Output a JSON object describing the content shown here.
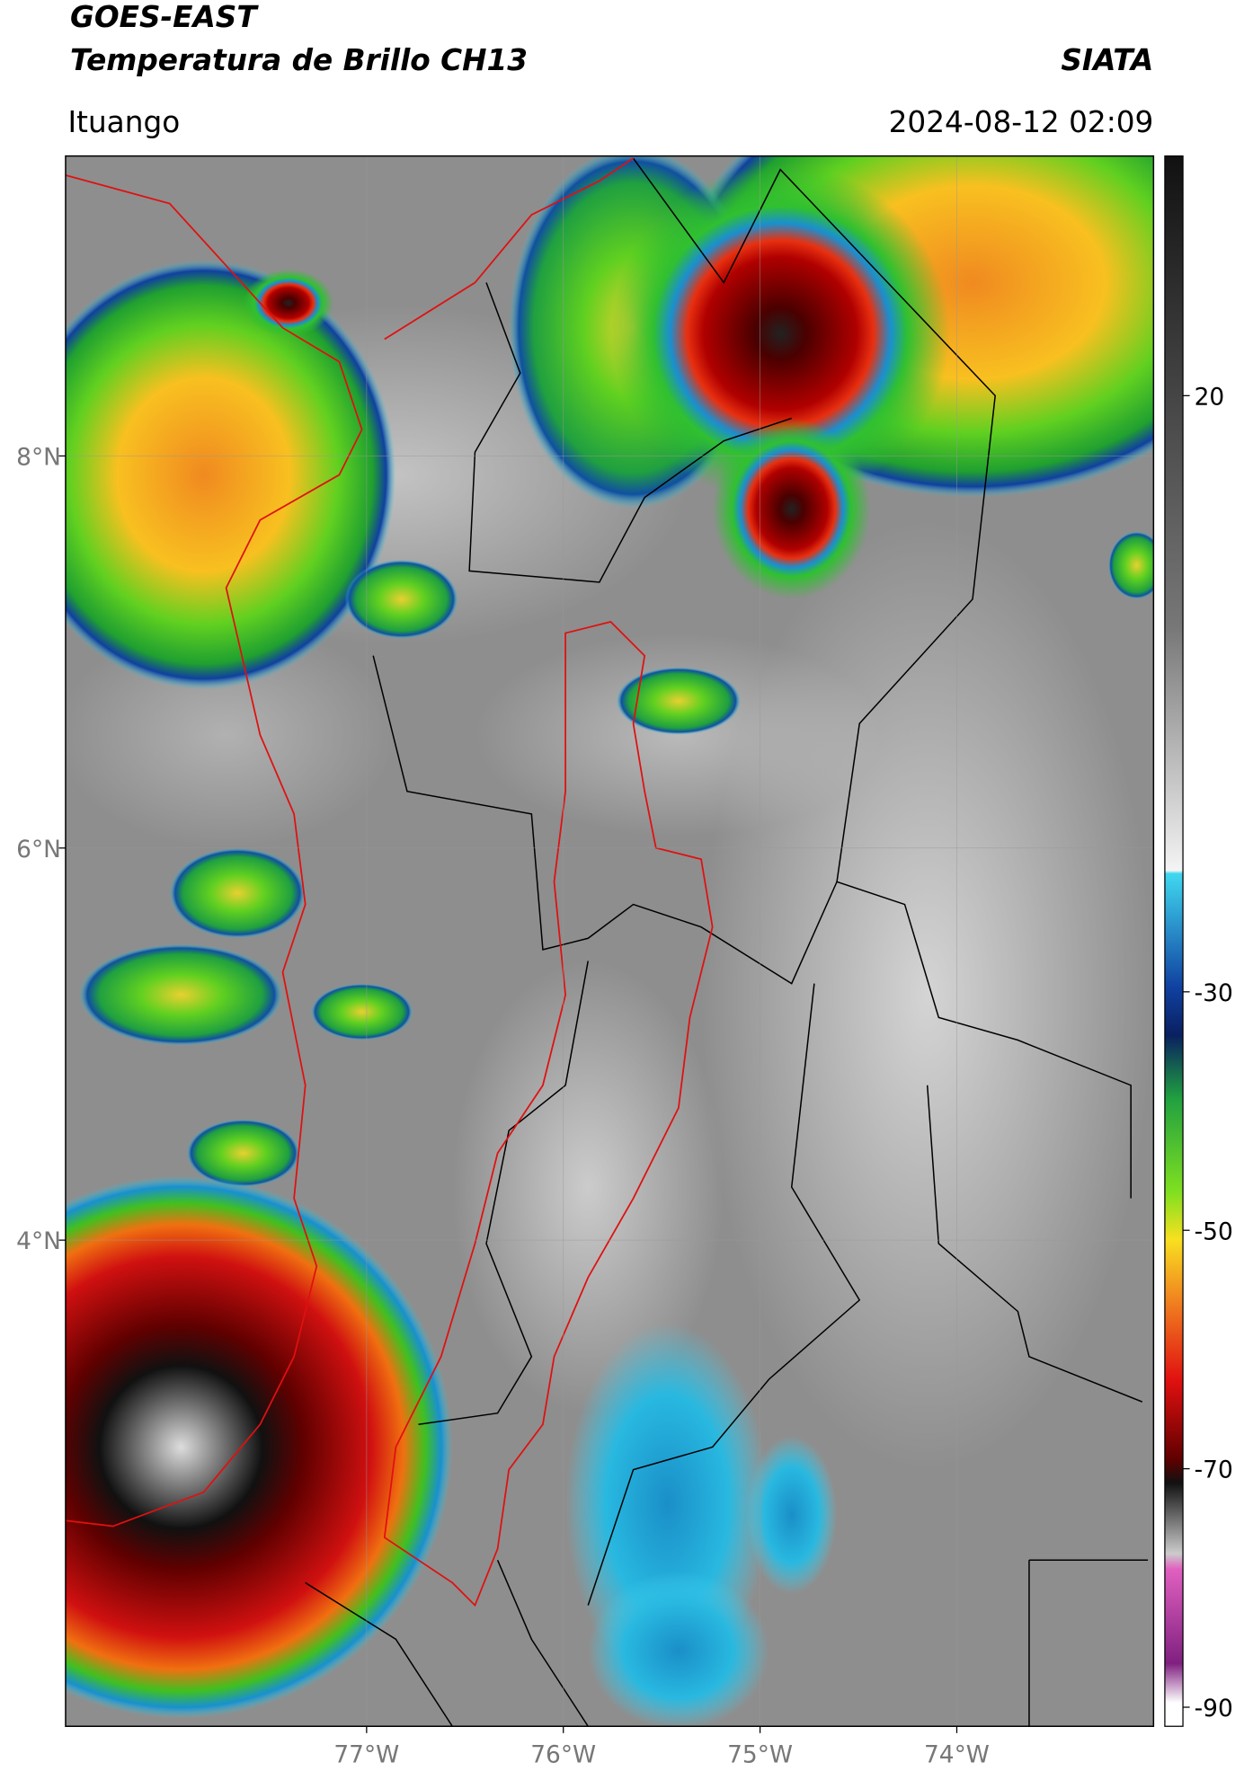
{
  "header": {
    "satellite": "GOES-EAST",
    "product": "Temperatura de Brillo CH13",
    "source": "SIATA",
    "region": "Ituango",
    "datetime": "2024-08-12 02:09"
  },
  "map": {
    "xlim": [
      -78.53,
      -73.0
    ],
    "ylim": [
      1.52,
      9.53
    ],
    "xticks": [
      {
        "value": -77,
        "label": "77°W"
      },
      {
        "value": -76,
        "label": "76°W"
      },
      {
        "value": -75,
        "label": "75°W"
      },
      {
        "value": -74,
        "label": "74°W"
      }
    ],
    "yticks": [
      {
        "value": 8,
        "label": "8°N"
      },
      {
        "value": 6,
        "label": "6°N"
      },
      {
        "value": 4,
        "label": "4°N"
      }
    ],
    "grid": true
  },
  "colorbar": {
    "lim": [
      -91.6,
      40.1
    ],
    "ticks": [
      20,
      -30,
      -50,
      -70,
      -90
    ]
  }
}
